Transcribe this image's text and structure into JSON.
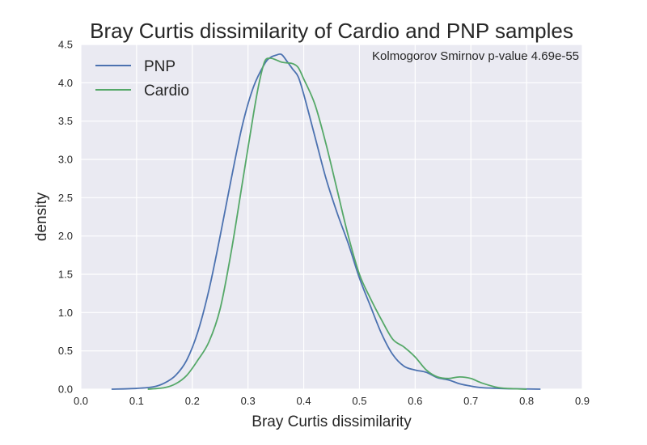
{
  "chart_data": {
    "type": "line",
    "title": "Bray Curtis dissimilarity of Cardio and PNP samples",
    "xlabel": "Bray Curtis dissimilarity",
    "ylabel": "density",
    "xlim": [
      0.0,
      0.9
    ],
    "ylim": [
      0.0,
      4.5
    ],
    "x_ticks": [
      "0.0",
      "0.1",
      "0.2",
      "0.3",
      "0.4",
      "0.5",
      "0.6",
      "0.7",
      "0.8",
      "0.9"
    ],
    "y_ticks": [
      "0.0",
      "0.5",
      "1.0",
      "1.5",
      "2.0",
      "2.5",
      "3.0",
      "3.5",
      "4.0",
      "4.5"
    ],
    "grid": true,
    "legend_position": "top-left",
    "annotation": "Kolmogorov Smirnov p-value 4.69e-55",
    "series": [
      {
        "name": "PNP",
        "color": "#4c72b0",
        "x": [
          0.055,
          0.1,
          0.13,
          0.15,
          0.17,
          0.19,
          0.21,
          0.23,
          0.25,
          0.27,
          0.29,
          0.31,
          0.33,
          0.34,
          0.35,
          0.36,
          0.37,
          0.38,
          0.39,
          0.4,
          0.42,
          0.44,
          0.46,
          0.48,
          0.5,
          0.52,
          0.54,
          0.56,
          0.58,
          0.6,
          0.62,
          0.64,
          0.66,
          0.68,
          0.7,
          0.72,
          0.75,
          0.78,
          0.825
        ],
        "y": [
          0.0,
          0.01,
          0.03,
          0.08,
          0.18,
          0.38,
          0.75,
          1.3,
          2.0,
          2.75,
          3.45,
          3.95,
          4.25,
          4.33,
          4.36,
          4.37,
          4.28,
          4.18,
          4.08,
          3.85,
          3.3,
          2.75,
          2.3,
          1.9,
          1.45,
          1.08,
          0.72,
          0.45,
          0.3,
          0.25,
          0.22,
          0.15,
          0.12,
          0.07,
          0.04,
          0.02,
          0.01,
          0.005,
          0.0
        ]
      },
      {
        "name": "Cardio",
        "color": "#55a868",
        "x": [
          0.12,
          0.15,
          0.17,
          0.19,
          0.21,
          0.23,
          0.25,
          0.27,
          0.29,
          0.31,
          0.32,
          0.33,
          0.34,
          0.35,
          0.36,
          0.37,
          0.38,
          0.39,
          0.4,
          0.42,
          0.44,
          0.46,
          0.48,
          0.5,
          0.52,
          0.54,
          0.56,
          0.58,
          0.6,
          0.62,
          0.64,
          0.66,
          0.68,
          0.7,
          0.72,
          0.75,
          0.78,
          0.8
        ],
        "y": [
          0.0,
          0.02,
          0.07,
          0.18,
          0.38,
          0.62,
          1.05,
          1.8,
          2.7,
          3.6,
          4.0,
          4.28,
          4.32,
          4.3,
          4.27,
          4.26,
          4.25,
          4.2,
          4.05,
          3.72,
          3.2,
          2.6,
          2.0,
          1.5,
          1.18,
          0.9,
          0.65,
          0.55,
          0.42,
          0.25,
          0.16,
          0.14,
          0.16,
          0.14,
          0.08,
          0.02,
          0.005,
          0.0
        ]
      }
    ]
  }
}
